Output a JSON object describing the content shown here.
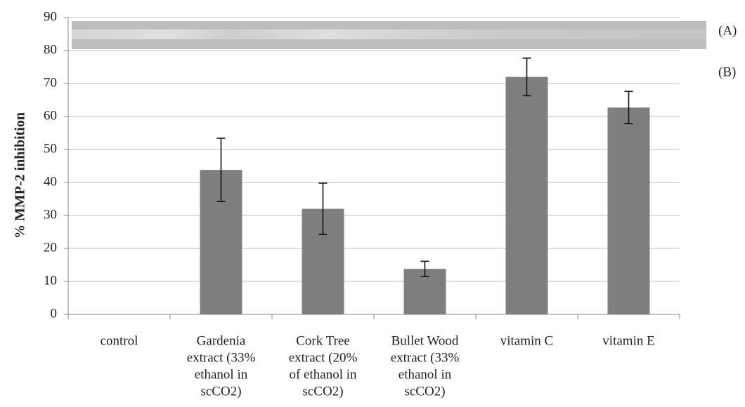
{
  "chart_data": {
    "type": "bar",
    "ylabel": "% MMP-2 inhibition",
    "annotations": [
      "(A)",
      "(B)"
    ],
    "categories": [
      [
        "control"
      ],
      [
        "Gardenia",
        "extract (33%",
        "ethanol in",
        "scCO2)"
      ],
      [
        "Cork Tree",
        "extract (20%",
        "of ethanol in",
        "scCO2)"
      ],
      [
        "Bullet Wood",
        "extract (33%",
        "ethanol in",
        "scCO2)"
      ],
      [
        "vitamin C"
      ],
      [
        "vitamin E"
      ]
    ],
    "series": [
      {
        "color": "#7f7f7f",
        "values": [
          0,
          43.8,
          32,
          13.8,
          72,
          62.7
        ],
        "errors": [
          null,
          9.6,
          7.8,
          2.3,
          5.7,
          4.9
        ]
      }
    ],
    "ylim": [
      0,
      90
    ],
    "yticks": [
      0,
      10,
      20,
      30,
      40,
      50,
      60,
      70,
      80,
      90
    ],
    "grid": true
  }
}
